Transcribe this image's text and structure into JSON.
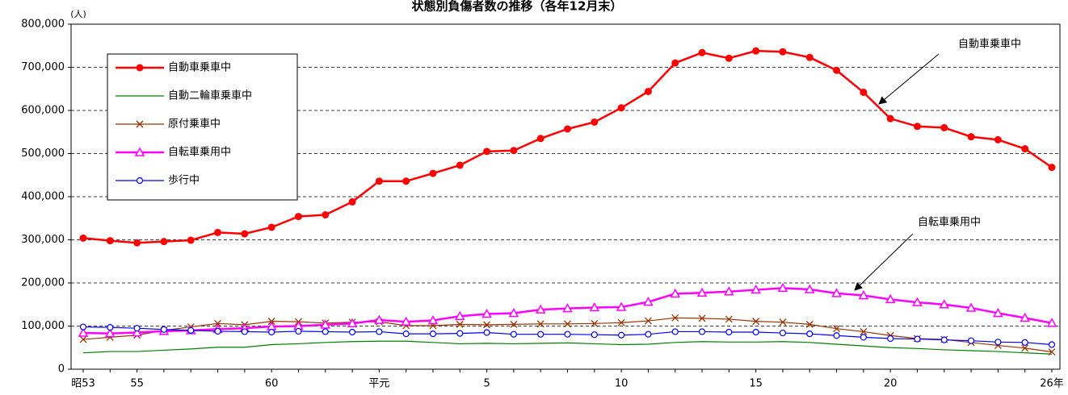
{
  "chart_data": {
    "type": "line",
    "title": "状態別負傷者数の推移（各年12月末）",
    "y_unit": "(人)",
    "categories": [
      "昭53",
      null,
      "55",
      null,
      null,
      null,
      null,
      "60",
      null,
      null,
      null,
      "平元",
      null,
      null,
      null,
      "5",
      null,
      null,
      null,
      null,
      "10",
      null,
      null,
      null,
      null,
      "15",
      null,
      null,
      null,
      null,
      "20",
      null,
      null,
      null,
      null,
      null,
      "26年"
    ],
    "series": [
      {
        "name": "自動車乗車中",
        "color": "#ff0000",
        "marker": "filled-circle",
        "width": 2.5,
        "values": [
          304000,
          298000,
          293000,
          296000,
          299000,
          317000,
          314000,
          329000,
          354000,
          358000,
          388000,
          436000,
          436000,
          454000,
          473000,
          505000,
          507000,
          535000,
          557000,
          573000,
          606000,
          644000,
          710000,
          734000,
          721000,
          738000,
          736000,
          723000,
          693000,
          642000,
          581000,
          563000,
          560000,
          539000,
          532000,
          511000,
          468000
        ]
      },
      {
        "name": "自動二輪車乗車中",
        "color": "#008000",
        "marker": "none",
        "width": 1.2,
        "values": [
          38000,
          41000,
          41000,
          44000,
          47000,
          51000,
          51000,
          57000,
          59000,
          62000,
          64000,
          65000,
          65000,
          62000,
          59000,
          60000,
          59000,
          60000,
          61000,
          59000,
          57000,
          58000,
          62000,
          64000,
          63000,
          63000,
          64000,
          62000,
          58000,
          54000,
          50000,
          48000,
          45000,
          43000,
          41000,
          38000,
          35000
        ]
      },
      {
        "name": "原付乗車中",
        "color": "#993300",
        "marker": "cross",
        "width": 1.2,
        "values": [
          69000,
          74000,
          79000,
          90000,
          98000,
          106000,
          103000,
          111000,
          110000,
          107000,
          109000,
          110000,
          101000,
          101000,
          104000,
          103000,
          104000,
          105000,
          105000,
          106000,
          108000,
          112000,
          119000,
          118000,
          116000,
          111000,
          109000,
          104000,
          94000,
          87000,
          78000,
          71000,
          69000,
          62000,
          55000,
          49000,
          40000
        ]
      },
      {
        "name": "自転車乗用中",
        "color": "#ff00ff",
        "marker": "triangle",
        "width": 2.5,
        "values": [
          84000,
          83000,
          85000,
          88000,
          90000,
          93000,
          95000,
          99000,
          100000,
          103000,
          106000,
          114000,
          110000,
          113000,
          123000,
          128000,
          130000,
          138000,
          141000,
          143000,
          144000,
          156000,
          175000,
          177000,
          180000,
          184000,
          188000,
          185000,
          176000,
          171000,
          162000,
          155000,
          150000,
          142000,
          130000,
          119000,
          107000
        ]
      },
      {
        "name": "歩行中",
        "color": "#0000ff",
        "marker": "open-circle",
        "width": 1.2,
        "values": [
          98000,
          97000,
          95000,
          92000,
          90000,
          88000,
          87000,
          86000,
          88000,
          87000,
          86000,
          87000,
          82000,
          82000,
          83000,
          85000,
          81000,
          81000,
          81000,
          80000,
          79000,
          81000,
          87000,
          87000,
          86000,
          86000,
          84000,
          82000,
          78000,
          74000,
          71000,
          70000,
          68000,
          66000,
          63000,
          62000,
          57000
        ]
      }
    ],
    "ylim": [
      0,
      800000
    ],
    "yticks": [
      0,
      {
        "value": 100000,
        "label": "100,000"
      },
      {
        "value": 200000,
        "label": "200,000"
      },
      {
        "value": 300000,
        "label": "300,000"
      },
      {
        "value": 400000,
        "label": "400,000"
      },
      {
        "value": 500000,
        "label": "500,000"
      },
      {
        "value": 600000,
        "label": "600,000"
      },
      {
        "value": 700000,
        "label": "700,000"
      },
      {
        "value": 800000,
        "label": "800,000"
      }
    ],
    "grid": true,
    "legend": "upper-left",
    "annotations": [
      {
        "text": "自動車乗車中",
        "series": 0
      },
      {
        "text": "自転車乗用中",
        "series": 3
      }
    ]
  }
}
